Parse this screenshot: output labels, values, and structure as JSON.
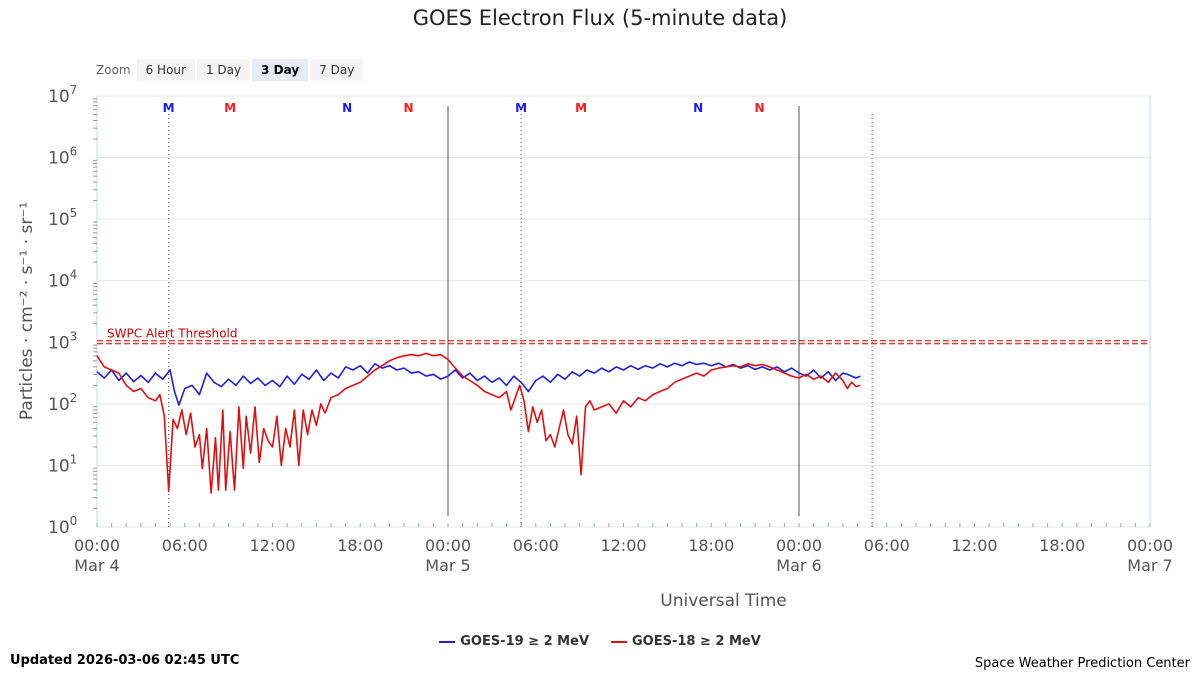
{
  "title": "GOES Electron Flux (5-minute data)",
  "zoom": {
    "label": "Zoom",
    "buttons": [
      "6 Hour",
      "1 Day",
      "3 Day",
      "7 Day"
    ],
    "selected": "3 Day"
  },
  "footer": {
    "updated": "Updated 2026-03-06 02:45 UTC",
    "credit": "Space Weather Prediction Center"
  },
  "chart_data": {
    "type": "line",
    "title": "GOES Electron Flux (5-minute data)",
    "xlabel": "Universal Time",
    "ylabel": "Particles · cm⁻² · s⁻¹ · sr⁻¹",
    "y_scale": "log",
    "ylim_exp": [
      0,
      7
    ],
    "y_ticks": [
      {
        "base": "10",
        "exp": "0"
      },
      {
        "base": "10",
        "exp": "1"
      },
      {
        "base": "10",
        "exp": "2"
      },
      {
        "base": "10",
        "exp": "3"
      },
      {
        "base": "10",
        "exp": "4"
      },
      {
        "base": "10",
        "exp": "5"
      },
      {
        "base": "10",
        "exp": "6"
      },
      {
        "base": "10",
        "exp": "7"
      }
    ],
    "xlim_hours": [
      0,
      72
    ],
    "x_ticks": [
      {
        "h": 0,
        "time": "00:00",
        "date": "Mar 4"
      },
      {
        "h": 6,
        "time": "06:00",
        "date": ""
      },
      {
        "h": 12,
        "time": "12:00",
        "date": ""
      },
      {
        "h": 18,
        "time": "18:00",
        "date": ""
      },
      {
        "h": 24,
        "time": "00:00",
        "date": "Mar 5"
      },
      {
        "h": 30,
        "time": "06:00",
        "date": ""
      },
      {
        "h": 36,
        "time": "12:00",
        "date": ""
      },
      {
        "h": 42,
        "time": "18:00",
        "date": ""
      },
      {
        "h": 48,
        "time": "00:00",
        "date": "Mar 6"
      },
      {
        "h": 54,
        "time": "06:00",
        "date": ""
      },
      {
        "h": 60,
        "time": "12:00",
        "date": ""
      },
      {
        "h": 66,
        "time": "18:00",
        "date": ""
      },
      {
        "h": 72,
        "time": "00:00",
        "date": "Mar 7"
      }
    ],
    "day_boundaries_h": [
      24,
      48
    ],
    "threshold": {
      "label": "SWPC Alert Threshold",
      "value_exp": 3,
      "color": "#cc0000"
    },
    "markers": [
      {
        "letter": "M",
        "h": 4.9,
        "color": "#1a1aff",
        "line": true
      },
      {
        "letter": "M",
        "h": 9.1,
        "color": "#ff1a1a",
        "line": false
      },
      {
        "letter": "N",
        "h": 17.1,
        "color": "#1a1aff",
        "line": false
      },
      {
        "letter": "N",
        "h": 21.3,
        "color": "#ff1a1a",
        "line": false
      },
      {
        "letter": "M",
        "h": 29.0,
        "color": "#1a1aff",
        "line": true
      },
      {
        "letter": "M",
        "h": 33.1,
        "color": "#ff1a1a",
        "line": false
      },
      {
        "letter": "N",
        "h": 41.1,
        "color": "#1a1aff",
        "line": false
      },
      {
        "letter": "N",
        "h": 45.3,
        "color": "#ff1a1a",
        "line": false
      },
      {
        "letter": "",
        "h": 53.0,
        "color": "#1a1aff",
        "line": true
      }
    ],
    "series": [
      {
        "name": "GOES-19 ≥ 2 MeV",
        "color": "#1f1fd6",
        "points": [
          [
            0,
            2.52
          ],
          [
            0.5,
            2.42
          ],
          [
            1,
            2.55
          ],
          [
            1.5,
            2.38
          ],
          [
            2,
            2.5
          ],
          [
            2.5,
            2.36
          ],
          [
            3,
            2.46
          ],
          [
            3.5,
            2.35
          ],
          [
            4,
            2.5
          ],
          [
            4.5,
            2.4
          ],
          [
            5,
            2.55
          ],
          [
            5.3,
            2.2
          ],
          [
            5.6,
            1.98
          ],
          [
            6,
            2.25
          ],
          [
            6.5,
            2.3
          ],
          [
            7,
            2.15
          ],
          [
            7.5,
            2.5
          ],
          [
            8,
            2.35
          ],
          [
            8.5,
            2.28
          ],
          [
            9,
            2.4
          ],
          [
            9.5,
            2.3
          ],
          [
            10,
            2.45
          ],
          [
            10.5,
            2.33
          ],
          [
            11,
            2.42
          ],
          [
            11.5,
            2.3
          ],
          [
            12,
            2.38
          ],
          [
            12.5,
            2.28
          ],
          [
            13,
            2.45
          ],
          [
            13.5,
            2.32
          ],
          [
            14,
            2.48
          ],
          [
            14.5,
            2.4
          ],
          [
            15,
            2.55
          ],
          [
            15.5,
            2.38
          ],
          [
            16,
            2.5
          ],
          [
            16.5,
            2.42
          ],
          [
            17,
            2.6
          ],
          [
            17.5,
            2.55
          ],
          [
            18,
            2.62
          ],
          [
            18.5,
            2.5
          ],
          [
            19,
            2.65
          ],
          [
            19.5,
            2.58
          ],
          [
            20,
            2.62
          ],
          [
            20.5,
            2.55
          ],
          [
            21,
            2.58
          ],
          [
            21.5,
            2.5
          ],
          [
            22,
            2.52
          ],
          [
            22.5,
            2.45
          ],
          [
            23,
            2.48
          ],
          [
            23.5,
            2.4
          ],
          [
            24,
            2.45
          ],
          [
            24.5,
            2.55
          ],
          [
            25,
            2.42
          ],
          [
            25.5,
            2.5
          ],
          [
            26,
            2.38
          ],
          [
            26.5,
            2.45
          ],
          [
            27,
            2.35
          ],
          [
            27.5,
            2.42
          ],
          [
            28,
            2.3
          ],
          [
            28.5,
            2.45
          ],
          [
            29,
            2.35
          ],
          [
            29.5,
            2.2
          ],
          [
            30,
            2.38
          ],
          [
            30.5,
            2.45
          ],
          [
            31,
            2.35
          ],
          [
            31.5,
            2.48
          ],
          [
            32,
            2.4
          ],
          [
            32.5,
            2.52
          ],
          [
            33,
            2.45
          ],
          [
            33.5,
            2.55
          ],
          [
            34,
            2.5
          ],
          [
            34.5,
            2.58
          ],
          [
            35,
            2.52
          ],
          [
            35.5,
            2.6
          ],
          [
            36,
            2.55
          ],
          [
            36.5,
            2.62
          ],
          [
            37,
            2.56
          ],
          [
            37.5,
            2.62
          ],
          [
            38,
            2.58
          ],
          [
            38.5,
            2.65
          ],
          [
            39,
            2.6
          ],
          [
            39.5,
            2.66
          ],
          [
            40,
            2.62
          ],
          [
            40.5,
            2.68
          ],
          [
            41,
            2.64
          ],
          [
            41.5,
            2.66
          ],
          [
            42,
            2.62
          ],
          [
            42.5,
            2.66
          ],
          [
            43,
            2.6
          ],
          [
            43.5,
            2.64
          ],
          [
            44,
            2.58
          ],
          [
            44.5,
            2.62
          ],
          [
            45,
            2.56
          ],
          [
            45.5,
            2.6
          ],
          [
            46,
            2.55
          ],
          [
            46.5,
            2.6
          ],
          [
            47,
            2.52
          ],
          [
            47.5,
            2.58
          ],
          [
            48,
            2.5
          ],
          [
            48.5,
            2.45
          ],
          [
            49,
            2.55
          ],
          [
            49.5,
            2.42
          ],
          [
            50,
            2.52
          ],
          [
            50.5,
            2.38
          ],
          [
            51,
            2.5
          ],
          [
            51.3,
            2.48
          ],
          [
            51.6,
            2.45
          ],
          [
            51.9,
            2.42
          ],
          [
            52.2,
            2.45
          ]
        ]
      },
      {
        "name": "GOES-18 ≥ 2 MeV",
        "color": "#e01010",
        "points": [
          [
            0,
            2.78
          ],
          [
            0.5,
            2.6
          ],
          [
            1,
            2.55
          ],
          [
            1.5,
            2.5
          ],
          [
            2,
            2.3
          ],
          [
            2.5,
            2.2
          ],
          [
            3,
            2.25
          ],
          [
            3.5,
            2.1
          ],
          [
            4,
            2.05
          ],
          [
            4.3,
            2.15
          ],
          [
            4.6,
            1.8
          ],
          [
            4.9,
            0.58
          ],
          [
            5.2,
            1.75
          ],
          [
            5.5,
            1.6
          ],
          [
            5.8,
            1.9
          ],
          [
            6.1,
            1.5
          ],
          [
            6.4,
            1.85
          ],
          [
            6.7,
            1.3
          ],
          [
            7,
            1.5
          ],
          [
            7.2,
            0.95
          ],
          [
            7.5,
            1.6
          ],
          [
            7.8,
            0.55
          ],
          [
            8.1,
            1.45
          ],
          [
            8.3,
            0.6
          ],
          [
            8.6,
            1.9
          ],
          [
            8.8,
            0.6
          ],
          [
            9.1,
            1.55
          ],
          [
            9.4,
            0.6
          ],
          [
            9.7,
            1.95
          ],
          [
            10,
            0.95
          ],
          [
            10.2,
            1.8
          ],
          [
            10.5,
            1.2
          ],
          [
            10.8,
            1.95
          ],
          [
            11.1,
            1.05
          ],
          [
            11.4,
            1.6
          ],
          [
            11.7,
            1.4
          ],
          [
            12,
            1.3
          ],
          [
            12.3,
            1.8
          ],
          [
            12.6,
            1.0
          ],
          [
            12.9,
            1.6
          ],
          [
            13.2,
            1.3
          ],
          [
            13.5,
            1.9
          ],
          [
            13.8,
            1.0
          ],
          [
            14.1,
            1.9
          ],
          [
            14.4,
            1.5
          ],
          [
            14.7,
            1.9
          ],
          [
            15,
            1.65
          ],
          [
            15.3,
            2.0
          ],
          [
            15.6,
            1.85
          ],
          [
            16,
            2.1
          ],
          [
            16.5,
            2.15
          ],
          [
            17,
            2.25
          ],
          [
            17.5,
            2.3
          ],
          [
            18,
            2.35
          ],
          [
            18.5,
            2.45
          ],
          [
            19,
            2.55
          ],
          [
            19.5,
            2.62
          ],
          [
            20,
            2.7
          ],
          [
            20.5,
            2.75
          ],
          [
            21,
            2.78
          ],
          [
            21.5,
            2.8
          ],
          [
            22,
            2.78
          ],
          [
            22.5,
            2.82
          ],
          [
            23,
            2.78
          ],
          [
            23.5,
            2.8
          ],
          [
            24,
            2.72
          ],
          [
            24.5,
            2.58
          ],
          [
            25,
            2.45
          ],
          [
            25.5,
            2.38
          ],
          [
            26,
            2.3
          ],
          [
            26.5,
            2.2
          ],
          [
            27,
            2.15
          ],
          [
            27.5,
            2.1
          ],
          [
            28,
            2.2
          ],
          [
            28.3,
            1.9
          ],
          [
            28.6,
            2.1
          ],
          [
            28.9,
            2.3
          ],
          [
            29.2,
            2.05
          ],
          [
            29.5,
            1.55
          ],
          [
            29.8,
            1.95
          ],
          [
            30.1,
            1.7
          ],
          [
            30.4,
            1.9
          ],
          [
            30.7,
            1.4
          ],
          [
            31,
            1.5
          ],
          [
            31.3,
            1.3
          ],
          [
            31.6,
            1.6
          ],
          [
            31.9,
            1.9
          ],
          [
            32.2,
            1.5
          ],
          [
            32.5,
            1.35
          ],
          [
            32.8,
            1.8
          ],
          [
            33.1,
            0.85
          ],
          [
            33.4,
            1.95
          ],
          [
            33.7,
            2.05
          ],
          [
            34,
            1.9
          ],
          [
            34.5,
            1.95
          ],
          [
            35,
            2.0
          ],
          [
            35.5,
            1.85
          ],
          [
            36,
            2.05
          ],
          [
            36.5,
            1.95
          ],
          [
            37,
            2.1
          ],
          [
            37.5,
            2.05
          ],
          [
            38,
            2.15
          ],
          [
            38.5,
            2.2
          ],
          [
            39,
            2.25
          ],
          [
            39.5,
            2.35
          ],
          [
            40,
            2.4
          ],
          [
            40.5,
            2.45
          ],
          [
            41,
            2.5
          ],
          [
            41.5,
            2.45
          ],
          [
            42,
            2.55
          ],
          [
            42.5,
            2.58
          ],
          [
            43,
            2.6
          ],
          [
            43.5,
            2.62
          ],
          [
            44,
            2.6
          ],
          [
            44.5,
            2.65
          ],
          [
            45,
            2.62
          ],
          [
            45.5,
            2.64
          ],
          [
            46,
            2.6
          ],
          [
            46.5,
            2.55
          ],
          [
            47,
            2.5
          ],
          [
            47.5,
            2.45
          ],
          [
            48,
            2.42
          ],
          [
            48.5,
            2.48
          ],
          [
            49,
            2.4
          ],
          [
            49.5,
            2.45
          ],
          [
            50,
            2.35
          ],
          [
            50.5,
            2.5
          ],
          [
            51,
            2.38
          ],
          [
            51.3,
            2.25
          ],
          [
            51.6,
            2.35
          ],
          [
            51.9,
            2.28
          ],
          [
            52.2,
            2.3
          ]
        ]
      }
    ]
  }
}
